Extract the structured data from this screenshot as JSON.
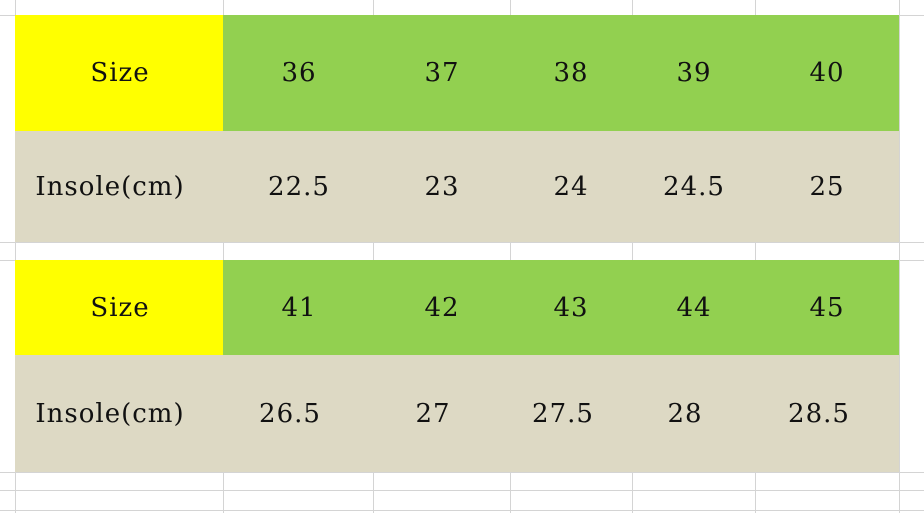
{
  "colors": {
    "label_bg": "#ffff00",
    "size_bg": "#92d050",
    "insole_bg": "#ddd9c4"
  },
  "tables": [
    {
      "size_label": "Size",
      "insole_label": "Insole(cm)",
      "sizes": [
        "36",
        "37",
        "38",
        "39",
        "40"
      ],
      "insoles": [
        "22.5",
        "23",
        "24",
        "24.5",
        "25"
      ]
    },
    {
      "size_label": "Size",
      "insole_label": "Insole(cm)",
      "sizes": [
        "41",
        "42",
        "43",
        "44",
        "45"
      ],
      "insoles": [
        "26.5",
        "27",
        "27.5",
        "28",
        "28.5"
      ]
    }
  ]
}
